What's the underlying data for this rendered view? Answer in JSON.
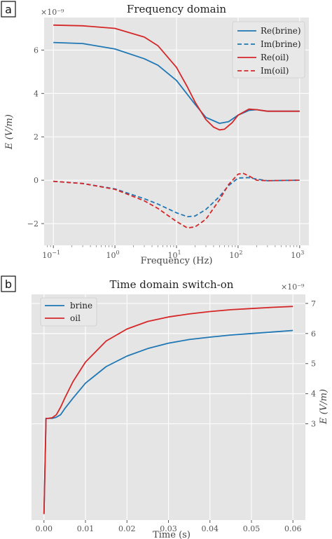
{
  "panels": [
    {
      "tag": "a",
      "chart_data": {
        "type": "line",
        "title": "Frequency domain",
        "xlabel": "Frequency (Hz)",
        "ylabel": "E (V/m)",
        "x_scale": "log",
        "xlim": [
          0.1,
          1000
        ],
        "ylim": [
          -3e-09,
          7.5e-09
        ],
        "y_multiplier_label": "×10⁻⁹",
        "x_ticks": [
          {
            "value": 0.1,
            "base": "10",
            "exp": "−1"
          },
          {
            "value": 1,
            "base": "10",
            "exp": "0"
          },
          {
            "value": 10,
            "base": "10",
            "exp": "1"
          },
          {
            "value": 100,
            "base": "10",
            "exp": "2"
          },
          {
            "value": 1000,
            "base": "10",
            "exp": "3"
          }
        ],
        "y_ticks": [
          {
            "value": -2e-09,
            "label": "−2"
          },
          {
            "value": 0,
            "label": "0"
          },
          {
            "value": 2e-09,
            "label": "2"
          },
          {
            "value": 4e-09,
            "label": "4"
          },
          {
            "value": 6e-09,
            "label": "6"
          }
        ],
        "grid": true,
        "legend_position": "top-right",
        "series": [
          {
            "name": "Re(brine)",
            "color": "#1f77b4",
            "dash": "solid",
            "x": [
              0.1,
              0.3,
              1,
              3,
              5,
              10,
              20,
              30,
              50,
              70,
              100,
              150,
              200,
              300,
              1000
            ],
            "y": [
              6.35e-09,
              6.3e-09,
              6.05e-09,
              5.6e-09,
              5.3e-09,
              4.6e-09,
              3.5e-09,
              2.9e-09,
              2.62e-09,
              2.7e-09,
              3e-09,
              3.22e-09,
              3.25e-09,
              3.18e-09,
              3.18e-09
            ]
          },
          {
            "name": "Im(brine)",
            "color": "#1f77b4",
            "dash": "dashed",
            "x": [
              0.1,
              0.3,
              1,
              3,
              5,
              10,
              15,
              20,
              30,
              50,
              70,
              100,
              150,
              200,
              300,
              1000
            ],
            "y": [
              -5e-11,
              -1.5e-10,
              -4e-10,
              -8.5e-10,
              -1.1e-09,
              -1.5e-09,
              -1.68e-09,
              -1.65e-09,
              -1.35e-09,
              -7.5e-10,
              -2.5e-10,
              1e-10,
              1.2e-10,
              5e-11,
              -2e-11,
              0.0
            ]
          },
          {
            "name": "Re(oil)",
            "color": "#d62728",
            "dash": "solid",
            "x": [
              0.1,
              0.3,
              1,
              3,
              5,
              10,
              15,
              20,
              30,
              40,
              50,
              60,
              80,
              100,
              150,
              200,
              300,
              1000
            ],
            "y": [
              7.15e-09,
              7.12e-09,
              7e-09,
              6.6e-09,
              6.2e-09,
              5.2e-09,
              4.3e-09,
              3.6e-09,
              2.8e-09,
              2.45e-09,
              2.32e-09,
              2.35e-09,
              2.65e-09,
              3e-09,
              3.28e-09,
              3.25e-09,
              3.18e-09,
              3.18e-09
            ]
          },
          {
            "name": "Im(oil)",
            "color": "#d62728",
            "dash": "dashed",
            "x": [
              0.1,
              0.3,
              1,
              3,
              5,
              10,
              15,
              20,
              30,
              50,
              70,
              100,
              120,
              150,
              200,
              300,
              1000
            ],
            "y": [
              -5e-11,
              -1.5e-10,
              -4.2e-10,
              -9.5e-10,
              -1.3e-09,
              -1.9e-09,
              -2.2e-09,
              -2.15e-09,
              -1.8e-09,
              -9e-10,
              -2e-10,
              2.8e-10,
              3.2e-10,
              2e-10,
              0.0,
              -2e-11,
              0.0
            ]
          }
        ]
      }
    },
    {
      "tag": "b",
      "chart_data": {
        "type": "line",
        "title": "Time domain switch-on",
        "xlabel": "Time (s)",
        "ylabel": "E (V/m)",
        "x_scale": "linear",
        "xlim": [
          -0.003,
          0.063
        ],
        "ylim": [
          -2e-10,
          7.3e-09
        ],
        "y_multiplier_label": "×10⁻⁹",
        "x_ticks": [
          {
            "value": 0.0,
            "label": "0.00"
          },
          {
            "value": 0.01,
            "label": "0.01"
          },
          {
            "value": 0.02,
            "label": "0.02"
          },
          {
            "value": 0.03,
            "label": "0.03"
          },
          {
            "value": 0.04,
            "label": "0.04"
          },
          {
            "value": 0.05,
            "label": "0.05"
          },
          {
            "value": 0.06,
            "label": "0.06"
          }
        ],
        "y_ticks": [
          {
            "value": 3e-09,
            "label": "3"
          },
          {
            "value": 4e-09,
            "label": "4"
          },
          {
            "value": 5e-09,
            "label": "5"
          },
          {
            "value": 6e-09,
            "label": "6"
          },
          {
            "value": 7e-09,
            "label": "7"
          }
        ],
        "y_axis_side": "right",
        "grid": true,
        "legend_position": "top-left",
        "series": [
          {
            "name": "brine",
            "color": "#1f77b4",
            "dash": "solid",
            "x": [
              0.0,
              0.0005,
              0.001,
              0.002,
              0.003,
              0.004,
              0.005,
              0.007,
              0.01,
              0.015,
              0.02,
              0.025,
              0.03,
              0.035,
              0.04,
              0.045,
              0.05,
              0.055,
              0.06
            ],
            "y": [
              0.0,
              3.18e-09,
              3.18e-09,
              3.18e-09,
              3.22e-09,
              3.3e-09,
              3.5e-09,
              3.85e-09,
              4.35e-09,
              4.9e-09,
              5.25e-09,
              5.5e-09,
              5.68e-09,
              5.8e-09,
              5.88e-09,
              5.95e-09,
              6e-09,
              6.05e-09,
              6.1e-09
            ]
          },
          {
            "name": "oil",
            "color": "#d62728",
            "dash": "solid",
            "x": [
              0.0,
              0.0005,
              0.001,
              0.002,
              0.003,
              0.004,
              0.005,
              0.007,
              0.01,
              0.015,
              0.02,
              0.025,
              0.03,
              0.035,
              0.04,
              0.045,
              0.05,
              0.055,
              0.06
            ],
            "y": [
              0.0,
              3.18e-09,
              3.18e-09,
              3.2e-09,
              3.3e-09,
              3.55e-09,
              3.85e-09,
              4.4e-09,
              5.05e-09,
              5.75e-09,
              6.15e-09,
              6.4e-09,
              6.55e-09,
              6.65e-09,
              6.73e-09,
              6.79e-09,
              6.83e-09,
              6.87e-09,
              6.9e-09
            ]
          }
        ]
      }
    }
  ]
}
